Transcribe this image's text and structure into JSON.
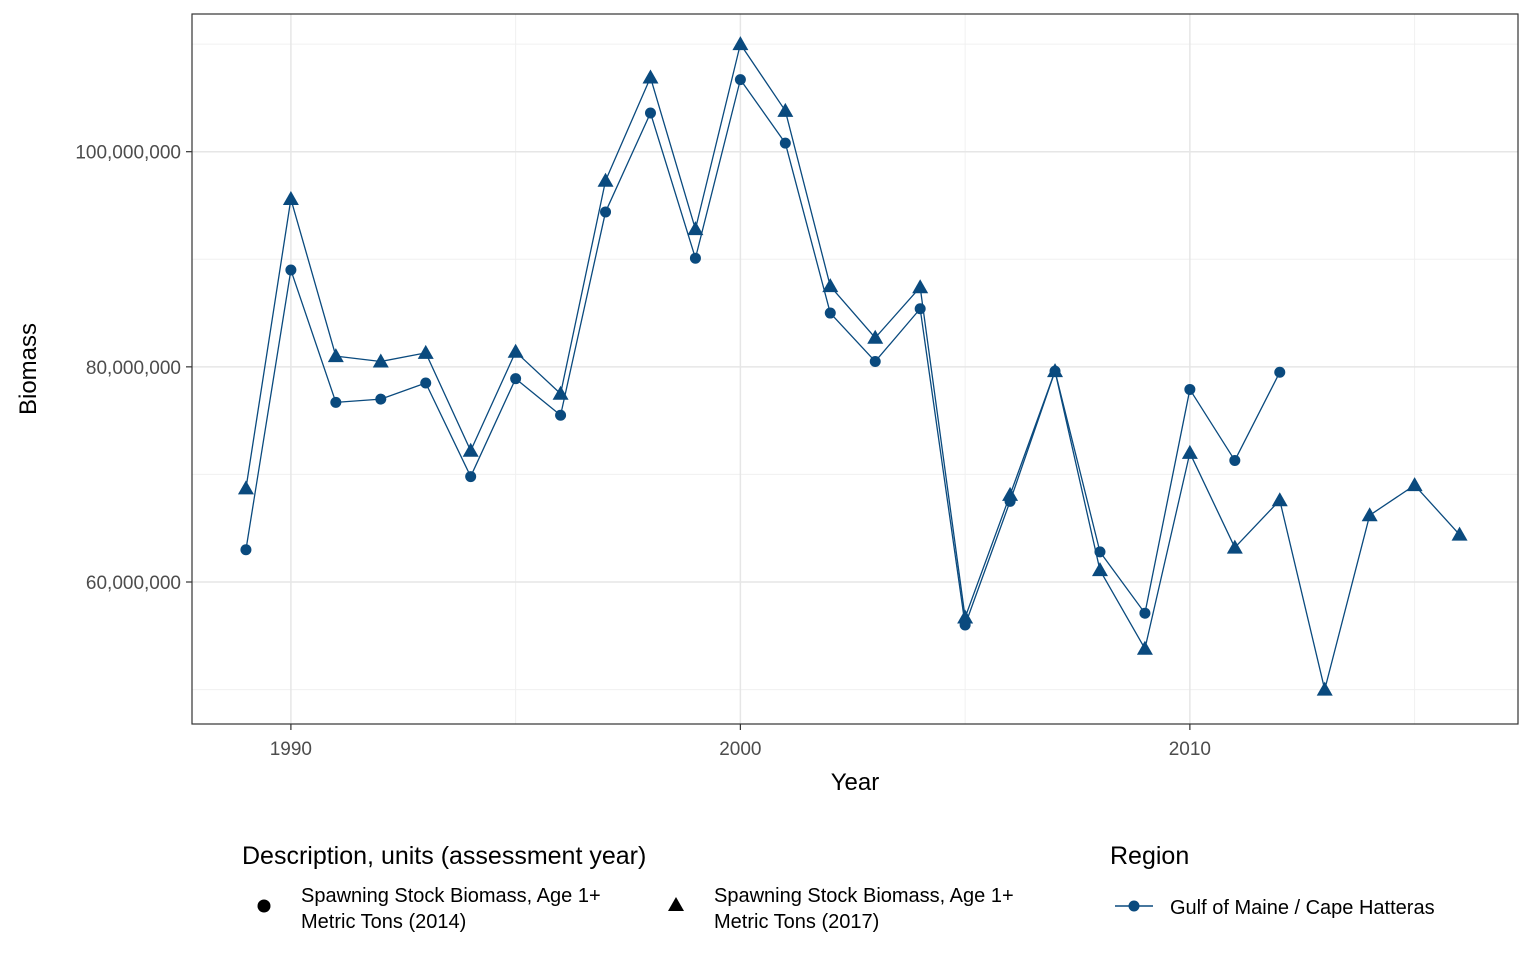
{
  "chart_data": {
    "type": "line",
    "title": "",
    "xlabel": "Year",
    "ylabel": "Biomass",
    "xlim": [
      1987.8,
      2017.3
    ],
    "ylim": [
      46800000,
      112800000
    ],
    "x_ticks": [
      1990,
      2000,
      2010
    ],
    "y_ticks": [
      60000000,
      80000000,
      100000000
    ],
    "y_tick_labels": [
      "60,000,000",
      "80,000,000",
      "100,000,000"
    ],
    "grid": true,
    "line_color": "#0a4a7e",
    "series": [
      {
        "label": "Spawning Stock Biomass, Age 1+ Metric Tons (2014)",
        "marker": "circle",
        "x": [
          1989,
          1990,
          1991,
          1992,
          1993,
          1994,
          1995,
          1996,
          1997,
          1998,
          1999,
          2000,
          2001,
          2002,
          2003,
          2004,
          2005,
          2006,
          2007,
          2008,
          2009,
          2010,
          2011,
          2012
        ],
        "y": [
          63000000,
          89000000,
          76700000,
          77000000,
          78500000,
          69800000,
          78900000,
          75500000,
          94400000,
          103600000,
          90100000,
          106700000,
          100800000,
          85000000,
          80500000,
          85400000,
          56000000,
          67500000,
          79600000,
          62800000,
          57100000,
          77900000,
          71300000,
          79500000
        ]
      },
      {
        "label": "Spawning Stock Biomass, Age 1+ Metric Tons (2017)",
        "marker": "triangle",
        "x": [
          1989,
          1990,
          1991,
          1992,
          1993,
          1994,
          1995,
          1996,
          1997,
          1998,
          1999,
          2000,
          2001,
          2002,
          2003,
          2004,
          2005,
          2006,
          2007,
          2008,
          2009,
          2010,
          2011,
          2012,
          2013,
          2014,
          2015,
          2016
        ],
        "y": [
          68700000,
          95600000,
          81000000,
          80500000,
          81300000,
          72200000,
          81400000,
          77500000,
          97300000,
          106900000,
          92800000,
          110000000,
          103800000,
          87500000,
          82700000,
          87400000,
          56700000,
          68100000,
          79600000,
          61100000,
          53800000,
          72000000,
          63200000,
          67600000,
          50000000,
          66200000,
          69000000,
          64400000
        ]
      }
    ],
    "legends": [
      {
        "title": "Description, units (assessment year)",
        "entries": [
          {
            "marker": "circle",
            "line1": "Spawning Stock Biomass, Age 1+",
            "line2": "Metric Tons (2014)"
          },
          {
            "marker": "triangle",
            "line1": "Spawning Stock Biomass, Age 1+",
            "line2": "Metric Tons (2017)"
          }
        ]
      },
      {
        "title": "Region",
        "entries": [
          {
            "marker": "line-circle",
            "label": "Gulf of Maine / Cape Hatteras"
          }
        ]
      }
    ],
    "legend_position": "bottom"
  }
}
